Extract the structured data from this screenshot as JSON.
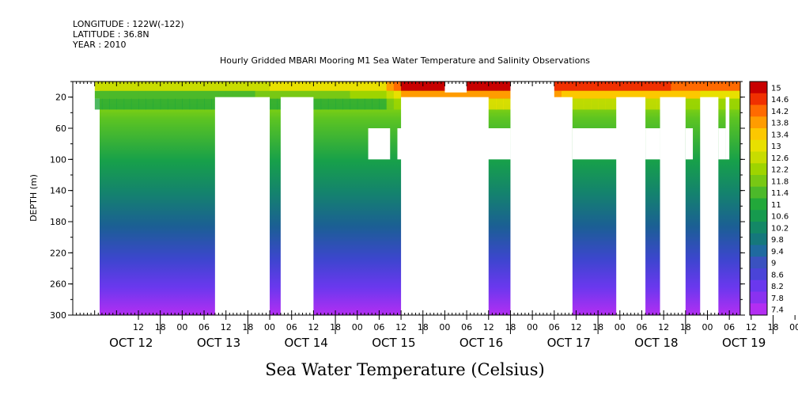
{
  "header": {
    "longitude": "LONGITUDE : 122W(-122)",
    "latitude": "LATITUDE : 36.8N",
    "year": "YEAR : 2010"
  },
  "chart_data": {
    "type": "heatmap",
    "title": "Hourly Gridded MBARI Mooring M1 Sea Water Temperature and Salinity Observations",
    "xlabel": "Sea Water Temperature (Celsius)",
    "ylabel": "DEPTH (m)",
    "x_range": [
      "2010-10-11T18:00",
      "2010-10-19T09:00"
    ],
    "ylim": [
      300,
      0
    ],
    "y_ticks": [
      "20",
      "60",
      "100",
      "140",
      "180",
      "220",
      "260",
      "300"
    ],
    "x_hour_ticks": [
      "12",
      "18",
      "00",
      "06",
      "12",
      "18",
      "00",
      "06",
      "12",
      "18",
      "00",
      "06",
      "12",
      "18",
      "00",
      "06",
      "12",
      "18",
      "00",
      "06",
      "12",
      "18",
      "00",
      "06",
      "12",
      "18",
      "00",
      "06",
      "12",
      "18",
      "00",
      "06"
    ],
    "day_labels": [
      "OCT 12",
      "OCT 13",
      "OCT 14",
      "OCT 15",
      "OCT 16",
      "OCT 17",
      "OCT 18",
      "OCT 19"
    ],
    "colorbar_labels": [
      "15",
      "14.6",
      "14.2",
      "13.8",
      "13.4",
      "13",
      "12.6",
      "12.2",
      "11.8",
      "11.4",
      "11",
      "10.6",
      "10.2",
      "9.8",
      "9.4",
      "9",
      "8.6",
      "8.2",
      "7.8",
      "7.4"
    ],
    "value_range": [
      7.4,
      15
    ],
    "profile": {
      "depth": [
        10,
        30,
        60,
        100,
        140,
        180,
        220,
        260,
        300
      ],
      "temperature": [
        12.6,
        11.2,
        10.6,
        10.0,
        9.5,
        9.0,
        8.5,
        8.1,
        7.6
      ]
    },
    "surface_temperature": {
      "dates": [
        "2010-10-12T00:00",
        "2010-10-13T12:00",
        "2010-10-14T12:00",
        "2010-10-15T06:00",
        "2010-10-15T12:00",
        "2010-10-16T12:00",
        "2010-10-17T12:00",
        "2010-10-18T12:00",
        "2010-10-19T06:00"
      ],
      "values": [
        12.4,
        12.6,
        13.0,
        13.2,
        14.8,
        15.0,
        14.6,
        14.4,
        14.2
      ]
    },
    "grid": false,
    "legend": "colorbar-right"
  }
}
